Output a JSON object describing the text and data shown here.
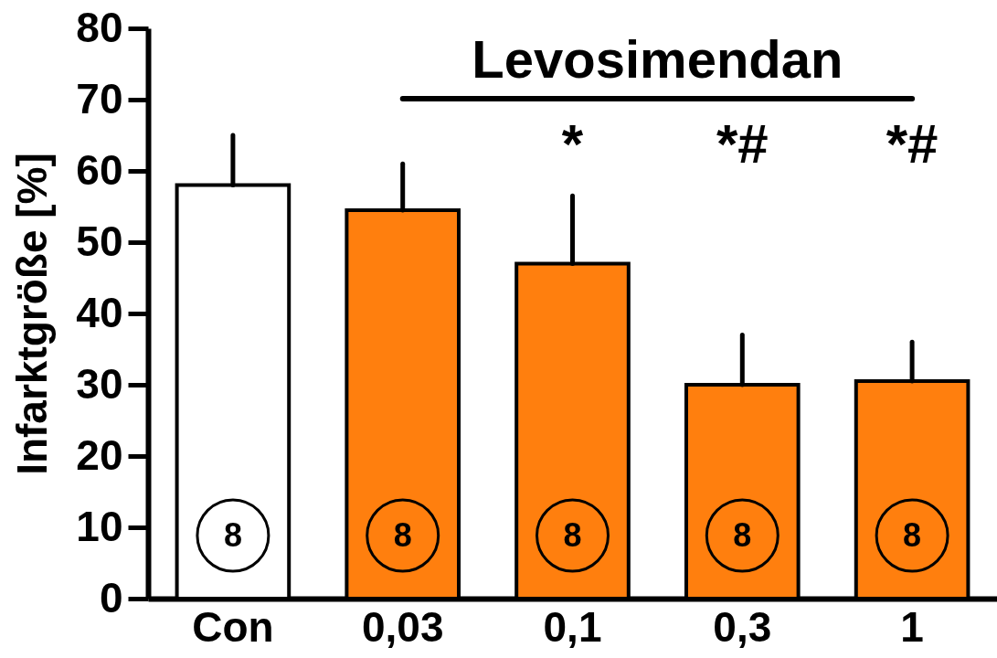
{
  "chart_data": {
    "type": "bar",
    "categories": [
      "Con",
      "0,03",
      "0,1",
      "0,3",
      "1"
    ],
    "values": [
      58,
      54.5,
      47,
      30,
      30.5
    ],
    "colors": [
      "#ffffff",
      "#ff7f0e",
      "#ff7f0e",
      "#ff7f0e",
      "#ff7f0e"
    ],
    "errors": [
      [
        58,
        65
      ],
      [
        54.5,
        61
      ],
      [
        47,
        56.5
      ],
      [
        30,
        37
      ],
      [
        30.5,
        36
      ]
    ],
    "ylabel": "Infarktgröße [%]",
    "ylim": [
      0,
      80
    ],
    "yticks": [
      0,
      10,
      20,
      30,
      40,
      50,
      60,
      70,
      80
    ],
    "grid": false,
    "annotations": [
      "Levosimendan",
      "*",
      "*#",
      "*#",
      "8",
      "8",
      "8",
      "8",
      "8"
    ]
  }
}
